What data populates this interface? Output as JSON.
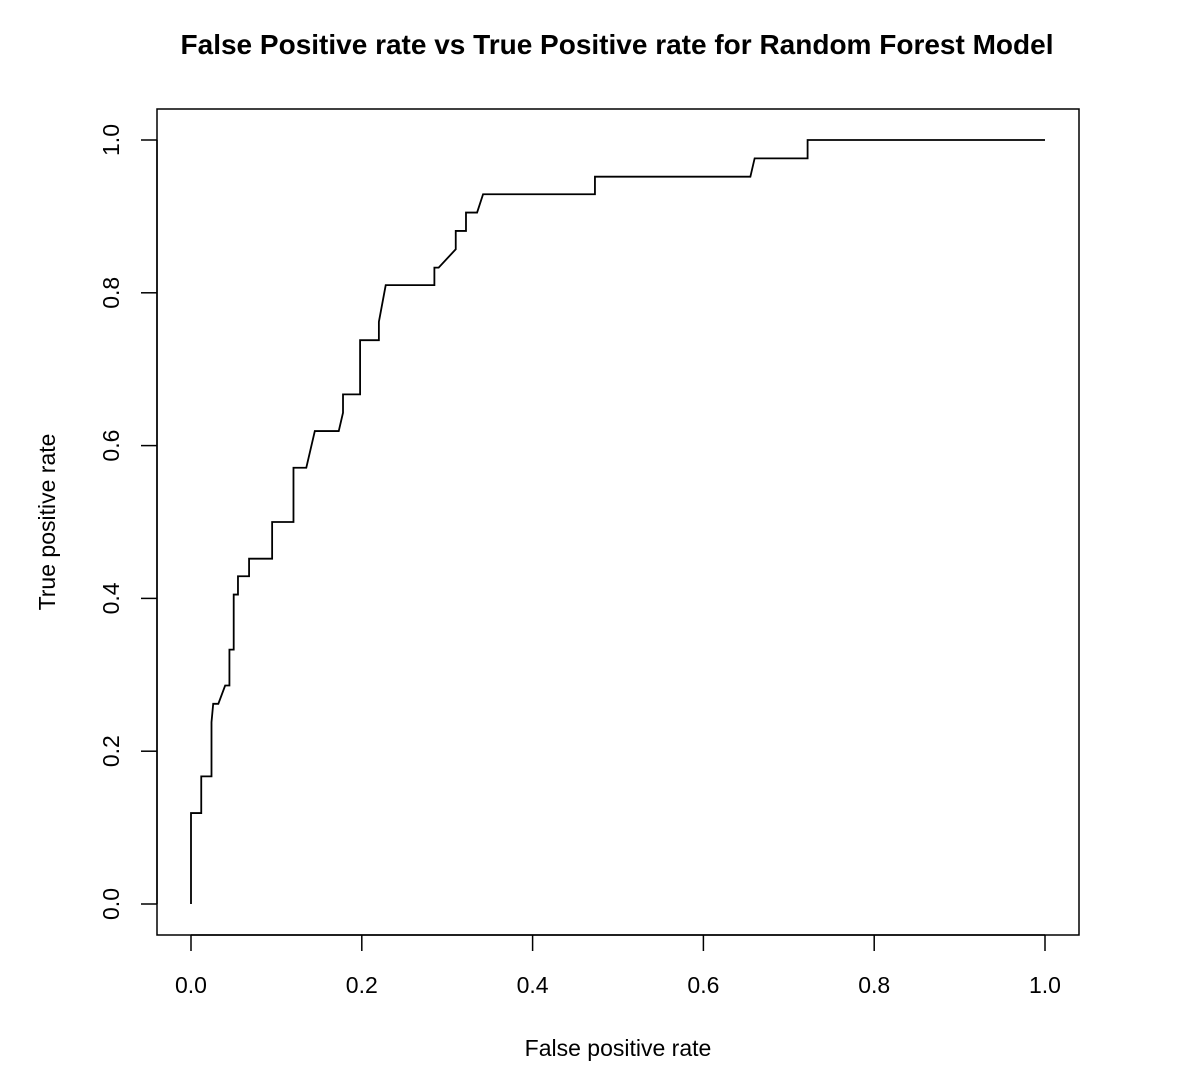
{
  "chart_data": {
    "type": "line",
    "title": "False Positive rate vs True Positive rate for Random Forest Model",
    "xlabel": "False positive rate",
    "ylabel": "True positive rate",
    "xlim": [
      0.0,
      1.0
    ],
    "ylim": [
      0.0,
      1.0
    ],
    "x_ticks": [
      "0.0",
      "0.2",
      "0.4",
      "0.6",
      "0.8",
      "1.0"
    ],
    "y_ticks": [
      "0.0",
      "0.2",
      "0.4",
      "0.6",
      "0.8",
      "1.0"
    ],
    "grid": false,
    "legend": "none",
    "line_color": "#000000",
    "series": [
      {
        "x": [
          0.0,
          0.0,
          0.012,
          0.012,
          0.024,
          0.024,
          0.026,
          0.032,
          0.04,
          0.045,
          0.045,
          0.05,
          0.05,
          0.055,
          0.055,
          0.068,
          0.068,
          0.095,
          0.095,
          0.12,
          0.12,
          0.135,
          0.145,
          0.173,
          0.178,
          0.178,
          0.198,
          0.198,
          0.22,
          0.22,
          0.228,
          0.285,
          0.285,
          0.29,
          0.31,
          0.31,
          0.322,
          0.322,
          0.335,
          0.342,
          0.342,
          0.473,
          0.473,
          0.655,
          0.66,
          0.66,
          0.722,
          0.722,
          1.0
        ],
        "y": [
          0.0,
          0.119,
          0.119,
          0.167,
          0.167,
          0.238,
          0.262,
          0.262,
          0.286,
          0.286,
          0.333,
          0.333,
          0.405,
          0.405,
          0.429,
          0.429,
          0.452,
          0.452,
          0.5,
          0.5,
          0.571,
          0.571,
          0.619,
          0.619,
          0.643,
          0.667,
          0.667,
          0.738,
          0.738,
          0.762,
          0.81,
          0.81,
          0.833,
          0.833,
          0.857,
          0.881,
          0.881,
          0.905,
          0.905,
          0.929,
          0.929,
          0.929,
          0.952,
          0.952,
          0.976,
          0.976,
          0.976,
          1.0,
          1.0
        ]
      }
    ]
  }
}
